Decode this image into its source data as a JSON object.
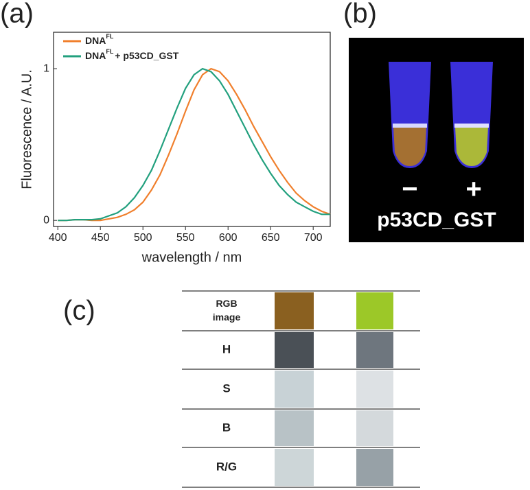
{
  "panel_labels": [
    "(a)",
    "(b)",
    "(c)"
  ],
  "chart_data": {
    "type": "line",
    "xlabel": "wavelength / nm",
    "ylabel": "Fluorescence / A.U.",
    "x": [
      400,
      410,
      420,
      430,
      440,
      450,
      460,
      470,
      480,
      490,
      500,
      510,
      520,
      530,
      540,
      550,
      560,
      570,
      580,
      590,
      600,
      610,
      620,
      630,
      640,
      650,
      660,
      670,
      680,
      690,
      700,
      710,
      720
    ],
    "series": [
      {
        "name": "DNA",
        "name_sup": "FL",
        "color": "#f07f2c",
        "values": [
          0,
          0,
          0.005,
          0.005,
          0,
          0,
          0.01,
          0.02,
          0.04,
          0.07,
          0.12,
          0.2,
          0.3,
          0.43,
          0.57,
          0.72,
          0.86,
          0.96,
          1.0,
          0.98,
          0.92,
          0.83,
          0.73,
          0.62,
          0.52,
          0.42,
          0.33,
          0.25,
          0.18,
          0.13,
          0.09,
          0.06,
          0.04
        ]
      },
      {
        "name": "DNA",
        "name_sup": "FL",
        "name_tail": "+ p53CD_GST",
        "color": "#22a07e",
        "values": [
          0,
          0,
          0.005,
          0.005,
          0.005,
          0.01,
          0.03,
          0.05,
          0.09,
          0.15,
          0.23,
          0.33,
          0.46,
          0.6,
          0.74,
          0.87,
          0.96,
          1.0,
          0.98,
          0.92,
          0.83,
          0.72,
          0.61,
          0.5,
          0.4,
          0.31,
          0.23,
          0.17,
          0.12,
          0.09,
          0.06,
          0.04,
          0.04
        ]
      }
    ],
    "xlim": [
      395,
      720
    ],
    "ylim": [
      -0.04,
      1.24
    ],
    "xticks": [
      400,
      450,
      500,
      550,
      600,
      650,
      700
    ],
    "yticks": [
      0,
      1
    ]
  },
  "photo": {
    "minus": "−",
    "plus": "+",
    "caption": "p53CD_GST"
  },
  "table": {
    "rows": [
      "RGB image",
      "H",
      "S",
      "B",
      "R/G"
    ]
  }
}
